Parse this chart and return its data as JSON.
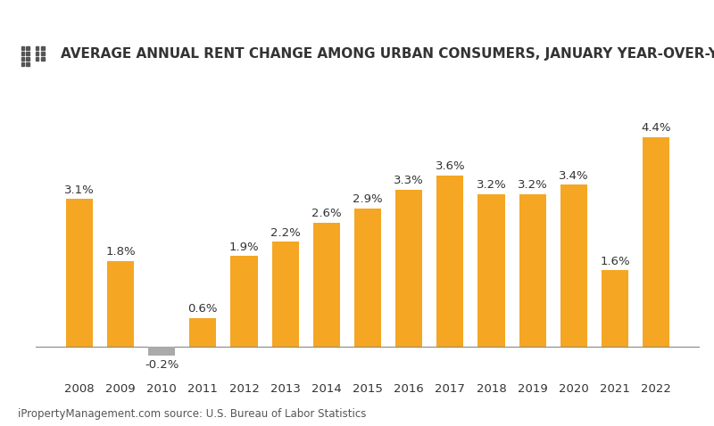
{
  "title": "AVERAGE ANNUAL RENT CHANGE AMONG URBAN CONSUMERS, JANUARY YEAR-OVER-YEAR",
  "categories": [
    "2008",
    "2009",
    "2010",
    "2011",
    "2012",
    "2013",
    "2014",
    "2015",
    "2016",
    "2017",
    "2018",
    "2019",
    "2020",
    "2021",
    "2022"
  ],
  "values": [
    3.1,
    1.8,
    -0.2,
    0.6,
    1.9,
    2.2,
    2.6,
    2.9,
    3.3,
    3.6,
    3.2,
    3.2,
    3.4,
    1.6,
    4.4
  ],
  "bar_color_positive": "#F5A623",
  "bar_color_negative": "#AAAAAA",
  "background_color": "#FFFFFF",
  "label_fontsize": 9.5,
  "title_fontsize": 11,
  "footer": "iPropertyManagement.com source: U.S. Bureau of Labor Statistics",
  "footer_fontsize": 8.5,
  "ylim_min": -0.6,
  "ylim_max": 5.5
}
